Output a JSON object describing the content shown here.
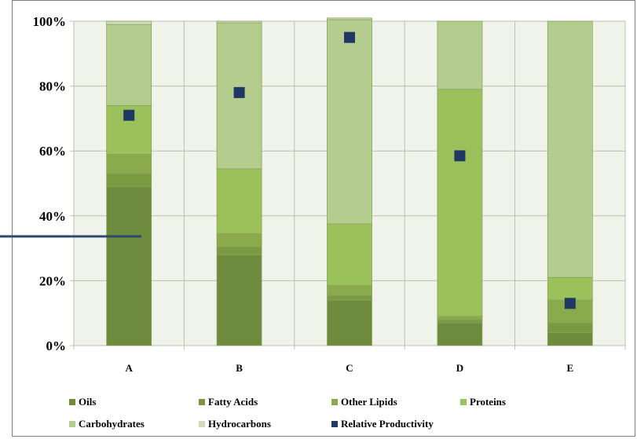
{
  "chart_data": {
    "type": "bar",
    "stacked": true,
    "normalized": true,
    "categories": [
      "A",
      "B",
      "C",
      "D",
      "E"
    ],
    "y_ticks": [
      "0%",
      "20%",
      "40%",
      "60%",
      "80%",
      "100%"
    ],
    "ylim": [
      0,
      100
    ],
    "grid": true,
    "legend_position": "bottom",
    "series": [
      {
        "name": "Oils",
        "color": "#6e8b3d",
        "values": [
          49,
          28,
          14,
          7,
          4
        ]
      },
      {
        "name": "Fatty Acids",
        "color": "#7a9a42",
        "values": [
          4,
          2.5,
          1.5,
          1,
          3
        ]
      },
      {
        "name": "Other Lipids",
        "color": "#8aaa4c",
        "values": [
          6,
          4,
          3,
          1,
          7
        ]
      },
      {
        "name": "Proteins",
        "color": "#9bc25a",
        "values": [
          15,
          20,
          19,
          70,
          7
        ]
      },
      {
        "name": "Carbohydrates",
        "color": "#b4cc8e",
        "values": [
          25,
          45,
          63,
          21,
          79
        ]
      },
      {
        "name": "Hydrocarbons",
        "color": "#d0ddb8",
        "values": [
          1,
          0.5,
          0.5,
          0,
          0
        ]
      }
    ],
    "markers": {
      "name": "Relative Productivity",
      "color": "#1f3864",
      "values": [
        71,
        78,
        95,
        58.5,
        13
      ]
    },
    "colors": {
      "plot_bg": "#f0f3ea",
      "grid": "#b9c0ad",
      "annotation_line": "#2e4a6a"
    }
  }
}
